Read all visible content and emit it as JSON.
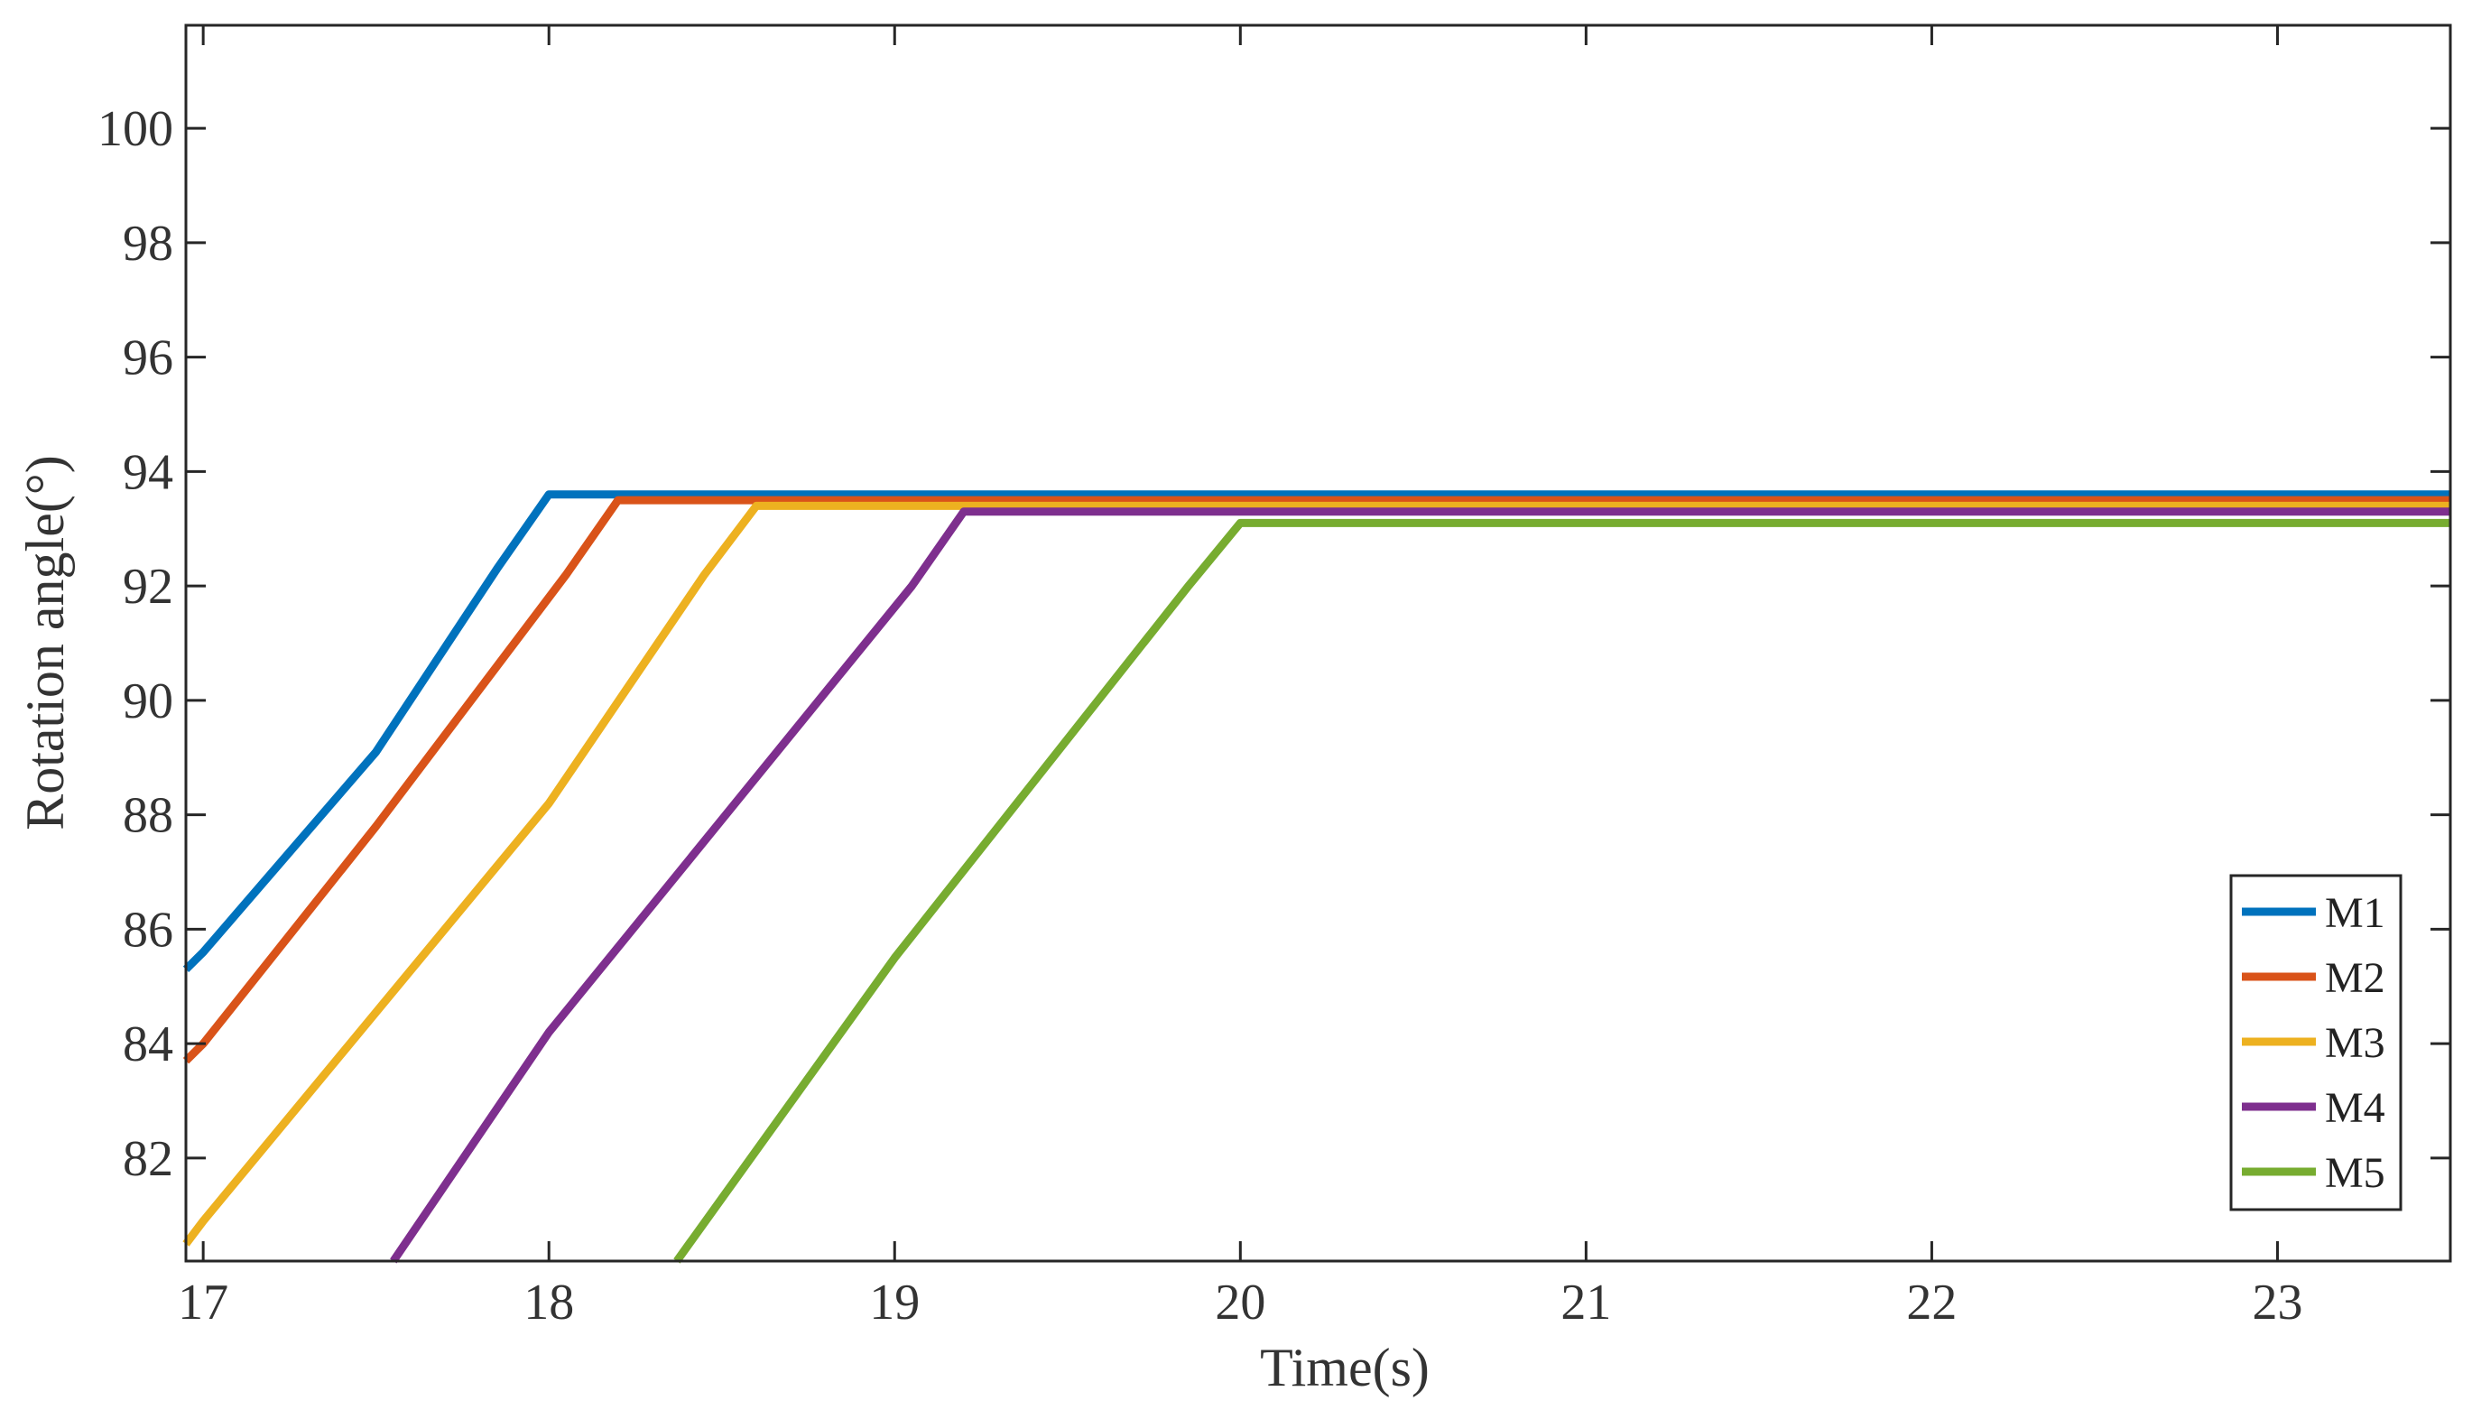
{
  "chart_data": {
    "type": "line",
    "xlabel": "Time(s)",
    "ylabel": "Rotation angle(°)",
    "xlim": [
      16.95,
      23.5
    ],
    "ylim": [
      80.2,
      101.8
    ],
    "xticks": [
      "17",
      "18",
      "19",
      "20",
      "21",
      "22",
      "23"
    ],
    "yticks": [
      "82",
      "84",
      "86",
      "88",
      "90",
      "92",
      "94",
      "96",
      "98",
      "100"
    ],
    "grid": false,
    "legend_position": "bottom-right",
    "series": [
      {
        "name": "M1",
        "color": "#0072BD",
        "points": [
          [
            16.95,
            85.3
          ],
          [
            17.0,
            85.6
          ],
          [
            17.5,
            89.1
          ],
          [
            17.85,
            92.3
          ],
          [
            18.0,
            93.6
          ],
          [
            23.5,
            93.6
          ]
        ]
      },
      {
        "name": "M2",
        "color": "#D95319",
        "points": [
          [
            16.95,
            83.7
          ],
          [
            17.0,
            84.0
          ],
          [
            17.5,
            87.8
          ],
          [
            18.05,
            92.2
          ],
          [
            18.2,
            93.5
          ],
          [
            23.5,
            93.5
          ]
        ]
      },
      {
        "name": "M3",
        "color": "#EDB120",
        "points": [
          [
            16.95,
            80.5
          ],
          [
            17.0,
            80.9
          ],
          [
            18.0,
            88.2
          ],
          [
            18.45,
            92.2
          ],
          [
            18.6,
            93.4
          ],
          [
            23.5,
            93.4
          ]
        ]
      },
      {
        "name": "M4",
        "color": "#7E2F8E",
        "points": [
          [
            17.55,
            80.2
          ],
          [
            18.0,
            84.2
          ],
          [
            19.05,
            92.0
          ],
          [
            19.2,
            93.3
          ],
          [
            23.5,
            93.3
          ]
        ]
      },
      {
        "name": "M5",
        "color": "#77AC30",
        "points": [
          [
            18.37,
            80.2
          ],
          [
            19.0,
            85.5
          ],
          [
            19.85,
            92.0
          ],
          [
            20.0,
            93.1
          ],
          [
            23.5,
            93.1
          ]
        ]
      }
    ]
  }
}
